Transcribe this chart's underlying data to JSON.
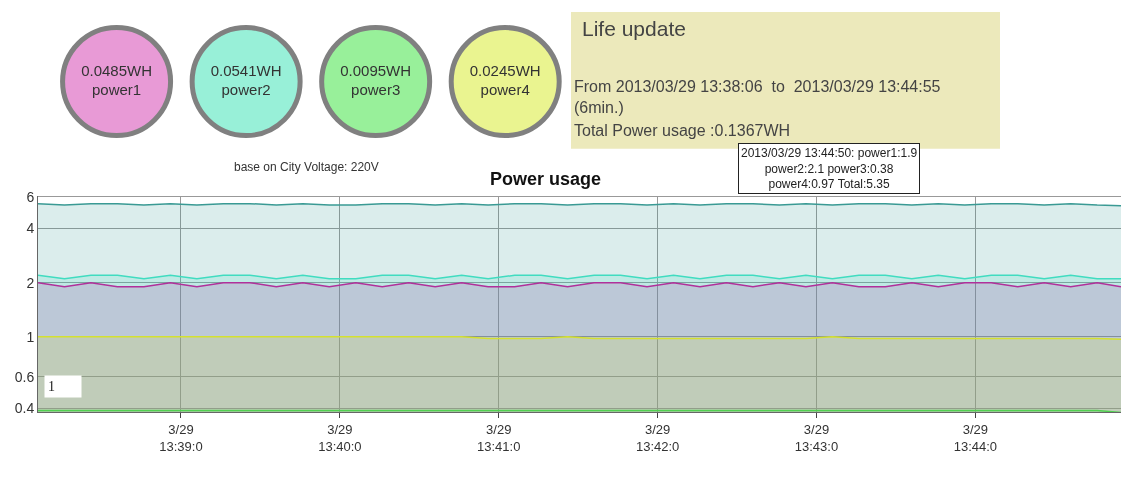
{
  "chart_data": [
    {
      "type": "other",
      "categories": [
        "power1",
        "power2",
        "power3",
        "power4"
      ],
      "value_labels": [
        "0.0485WH",
        "0.0541WH",
        "0.0095WH",
        "0.0245WH"
      ],
      "colors": [
        "#e89ad6",
        "#98f0d8",
        "#98f09a",
        "#eaf490"
      ],
      "annotations": [
        "base on City Voltage: 220V"
      ]
    },
    {
      "type": "other",
      "title": "Life update",
      "annotations": [
        "From 2013/03/29 13:38:06  to  2013/03/29 13:44:55\n(6min.)",
        "Total Power usage :0.1367WH"
      ]
    },
    {
      "type": "area",
      "title": "Power usage",
      "log": true,
      "grid": true,
      "x": [
        "2013-03-29T13:38:06",
        "2013-03-29T13:38:16",
        "2013-03-29T13:38:26",
        "2013-03-29T13:38:36",
        "2013-03-29T13:38:46",
        "2013-03-29T13:38:56",
        "2013-03-29T13:39:06",
        "2013-03-29T13:39:16",
        "2013-03-29T13:39:26",
        "2013-03-29T13:39:36",
        "2013-03-29T13:39:46",
        "2013-03-29T13:39:56",
        "2013-03-29T13:40:06",
        "2013-03-29T13:40:16",
        "2013-03-29T13:40:26",
        "2013-03-29T13:40:36",
        "2013-03-29T13:40:46",
        "2013-03-29T13:40:56",
        "2013-03-29T13:41:06",
        "2013-03-29T13:41:16",
        "2013-03-29T13:41:26",
        "2013-03-29T13:41:36",
        "2013-03-29T13:41:46",
        "2013-03-29T13:41:56",
        "2013-03-29T13:42:06",
        "2013-03-29T13:42:16",
        "2013-03-29T13:42:26",
        "2013-03-29T13:42:36",
        "2013-03-29T13:42:46",
        "2013-03-29T13:42:56",
        "2013-03-29T13:43:06",
        "2013-03-29T13:43:16",
        "2013-03-29T13:43:26",
        "2013-03-29T13:43:36",
        "2013-03-29T13:43:46",
        "2013-03-29T13:43:56",
        "2013-03-29T13:44:06",
        "2013-03-29T13:44:16",
        "2013-03-29T13:44:26",
        "2013-03-29T13:44:36",
        "2013-03-29T13:44:46",
        "2013-03-29T13:44:55"
      ],
      "xlim": [
        "2013-03-29T13:38:06",
        "2013-03-29T13:44:55"
      ],
      "xticks": [
        {
          "value": "2013-03-29T13:39",
          "label": "3/29\n13:39:0"
        },
        {
          "value": "2013-03-29T13:40",
          "label": "3/29\n13:40:0"
        },
        {
          "value": "2013-03-29T13:41",
          "label": "3/29\n13:41:0"
        },
        {
          "value": "2013-03-29T13:42",
          "label": "3/29\n13:42:0"
        },
        {
          "value": "2013-03-29T13:43",
          "label": "3/29\n13:43:0"
        },
        {
          "value": "2013-03-29T13:44",
          "label": "3/29\n13:44:0"
        }
      ],
      "ylim": [
        0.38,
        6.1
      ],
      "yticks": [
        0.4,
        0.6,
        1,
        2,
        4,
        6
      ],
      "series": [
        {
          "color": "#3a9a94",
          "values": [
            5.5,
            5.4,
            5.5,
            5.5,
            5.4,
            5.5,
            5.4,
            5.5,
            5.5,
            5.4,
            5.5,
            5.4,
            5.4,
            5.5,
            5.5,
            5.4,
            5.5,
            5.4,
            5.5,
            5.5,
            5.4,
            5.5,
            5.5,
            5.4,
            5.5,
            5.4,
            5.5,
            5.5,
            5.4,
            5.5,
            5.4,
            5.5,
            5.5,
            5.4,
            5.5,
            5.4,
            5.5,
            5.5,
            5.4,
            5.5,
            5.4,
            5.35
          ]
        },
        {
          "color": "#40dcc0",
          "values": [
            2.2,
            2.1,
            2.2,
            2.2,
            2.1,
            2.2,
            2.1,
            2.2,
            2.2,
            2.1,
            2.2,
            2.1,
            2.1,
            2.2,
            2.2,
            2.1,
            2.2,
            2.1,
            2.2,
            2.2,
            2.1,
            2.2,
            2.2,
            2.1,
            2.2,
            2.1,
            2.2,
            2.2,
            2.1,
            2.2,
            2.1,
            2.2,
            2.2,
            2.1,
            2.2,
            2.1,
            2.2,
            2.2,
            2.1,
            2.2,
            2.1,
            2.1
          ]
        },
        {
          "color": "#b0309a",
          "values": [
            2.0,
            1.9,
            2.0,
            1.9,
            1.9,
            2.0,
            1.9,
            2.0,
            2.0,
            1.9,
            2.0,
            1.9,
            2.0,
            1.9,
            2.0,
            1.9,
            2.0,
            1.9,
            1.9,
            2.0,
            1.9,
            2.0,
            2.0,
            1.9,
            2.0,
            1.9,
            2.0,
            1.9,
            2.0,
            1.9,
            2.0,
            1.9,
            1.9,
            2.0,
            1.9,
            2.0,
            2.0,
            1.9,
            2.0,
            1.9,
            2.0,
            1.9
          ]
        },
        {
          "color": "#d4e030",
          "values": [
            1.0,
            1.0,
            1.0,
            1.0,
            1.0,
            1.0,
            1.0,
            1.0,
            1.0,
            1.0,
            1.0,
            1.0,
            1.0,
            1.0,
            1.0,
            1.0,
            1.0,
            0.98,
            0.98,
            0.98,
            1.0,
            0.98,
            0.98,
            0.98,
            0.98,
            0.98,
            0.98,
            0.98,
            0.98,
            0.98,
            1.0,
            0.98,
            0.98,
            0.98,
            0.98,
            0.98,
            0.98,
            0.98,
            0.98,
            0.98,
            0.98,
            0.97
          ]
        },
        {
          "color": "#50d050",
          "values": [
            0.39,
            0.39,
            0.39,
            0.39,
            0.39,
            0.39,
            0.39,
            0.39,
            0.39,
            0.39,
            0.39,
            0.39,
            0.39,
            0.39,
            0.39,
            0.39,
            0.39,
            0.39,
            0.39,
            0.39,
            0.39,
            0.39,
            0.39,
            0.39,
            0.39,
            0.39,
            0.39,
            0.39,
            0.39,
            0.39,
            0.39,
            0.39,
            0.39,
            0.39,
            0.39,
            0.39,
            0.39,
            0.39,
            0.39,
            0.39,
            0.39,
            0.38
          ]
        }
      ],
      "annotations": [
        "2013/03/29 13:44:50: power1:1.9\npower2:2.1 power3:0.38\npower4:0.97 Total:5.35",
        "1"
      ]
    }
  ]
}
